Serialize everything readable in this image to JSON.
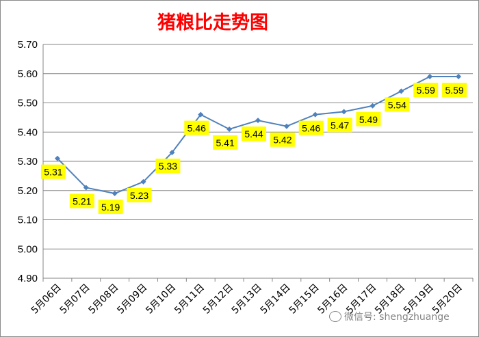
{
  "chart_data": {
    "type": "line",
    "title": "猪粮比走势图",
    "categories": [
      "5月06日",
      "5月07日",
      "5月08日",
      "5月09日",
      "5月10日",
      "5月11日",
      "5月12日",
      "5月13日",
      "5月14日",
      "5月15日",
      "5月16日",
      "5月17日",
      "5月18日",
      "5月19日",
      "5月20日"
    ],
    "series": [
      {
        "values": [
          5.31,
          5.21,
          5.19,
          5.23,
          5.33,
          5.46,
          5.41,
          5.44,
          5.42,
          5.46,
          5.47,
          5.49,
          5.54,
          5.59,
          5.59
        ]
      }
    ],
    "data_labels": [
      "5.31",
      "5.21",
      "5.19",
      "5.23",
      "5.33",
      "5.46",
      "5.41",
      "5.44",
      "5.42",
      "5.46",
      "5.47",
      "5.49",
      "5.54",
      "5.59",
      "5.59"
    ],
    "y_ticks": [
      "4.90",
      "5.00",
      "5.10",
      "5.20",
      "5.30",
      "5.40",
      "5.50",
      "5.60",
      "5.70"
    ],
    "ylim": [
      4.9,
      5.7
    ],
    "xlabel": "",
    "ylabel": "",
    "grid": true,
    "legend": "none",
    "colors": {
      "line": "#4f81bd",
      "label_bg": "#ffff00",
      "title": "#ff0000",
      "grid": "#868686"
    }
  },
  "watermark": {
    "text": "微信号: shengzhuange",
    "icon": "wechat-icon"
  }
}
